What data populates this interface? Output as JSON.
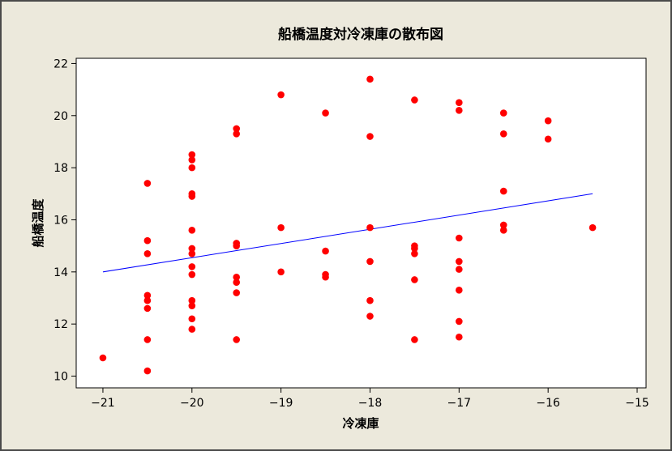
{
  "chart_data": {
    "type": "scatter",
    "title": "船橋温度対冷凍庫の散布図",
    "xlabel": "冷凍庫",
    "ylabel": "船橋温度",
    "xlim": [
      -21.3,
      -14.9
    ],
    "ylim": [
      9.55,
      22.2
    ],
    "xticks": [
      -21,
      -20,
      -19,
      -18,
      -17,
      -16,
      -15
    ],
    "yticks": [
      10,
      12,
      14,
      16,
      18,
      20,
      22
    ],
    "xtick_labels": [
      "−21",
      "−20",
      "−19",
      "−18",
      "−17",
      "−16",
      "−15"
    ],
    "ytick_labels": [
      "10",
      "12",
      "14",
      "16",
      "18",
      "20",
      "22"
    ],
    "grid": false,
    "series": [
      {
        "color": "#ff0000",
        "points": [
          [
            -21,
            10.7
          ],
          [
            -20.5,
            17.4
          ],
          [
            -20.5,
            15.2
          ],
          [
            -20.5,
            14.7
          ],
          [
            -20.5,
            13.1
          ],
          [
            -20.5,
            12.9
          ],
          [
            -20.5,
            12.6
          ],
          [
            -20.5,
            11.4
          ],
          [
            -20.5,
            10.2
          ],
          [
            -20,
            18.5
          ],
          [
            -20,
            18.3
          ],
          [
            -20,
            18.0
          ],
          [
            -20,
            17.0
          ],
          [
            -20,
            16.9
          ],
          [
            -20,
            15.6
          ],
          [
            -20,
            14.9
          ],
          [
            -20,
            14.7
          ],
          [
            -20,
            14.2
          ],
          [
            -20,
            13.9
          ],
          [
            -20,
            12.9
          ],
          [
            -20,
            12.7
          ],
          [
            -20,
            12.2
          ],
          [
            -20,
            11.8
          ],
          [
            -19.5,
            19.5
          ],
          [
            -19.5,
            19.3
          ],
          [
            -19.5,
            15.1
          ],
          [
            -19.5,
            15.0
          ],
          [
            -19.5,
            13.8
          ],
          [
            -19.5,
            13.6
          ],
          [
            -19.5,
            13.2
          ],
          [
            -19.5,
            11.4
          ],
          [
            -19,
            20.8
          ],
          [
            -19,
            15.7
          ],
          [
            -19,
            14.0
          ],
          [
            -18.5,
            20.1
          ],
          [
            -18.5,
            14.8
          ],
          [
            -18.5,
            13.9
          ],
          [
            -18.5,
            13.8
          ],
          [
            -18,
            21.4
          ],
          [
            -18,
            19.2
          ],
          [
            -18,
            15.7
          ],
          [
            -18,
            14.4
          ],
          [
            -18,
            12.9
          ],
          [
            -18,
            12.3
          ],
          [
            -17.5,
            20.6
          ],
          [
            -17.5,
            15.0
          ],
          [
            -17.5,
            14.9
          ],
          [
            -17.5,
            14.7
          ],
          [
            -17.5,
            13.7
          ],
          [
            -17.5,
            11.4
          ],
          [
            -17,
            20.5
          ],
          [
            -17,
            20.2
          ],
          [
            -17,
            15.3
          ],
          [
            -17,
            14.4
          ],
          [
            -17,
            14.1
          ],
          [
            -17,
            13.3
          ],
          [
            -17,
            12.1
          ],
          [
            -17,
            11.5
          ],
          [
            -16.5,
            20.1
          ],
          [
            -16.5,
            19.3
          ],
          [
            -16.5,
            17.1
          ],
          [
            -16.5,
            15.8
          ],
          [
            -16.5,
            15.6
          ],
          [
            -16,
            19.8
          ],
          [
            -16,
            19.1
          ],
          [
            -15.5,
            15.7
          ]
        ]
      }
    ],
    "fit_line": {
      "color": "#0000ff",
      "x": [
        -21,
        -15.5
      ],
      "y": [
        14.0,
        17.0
      ]
    }
  }
}
